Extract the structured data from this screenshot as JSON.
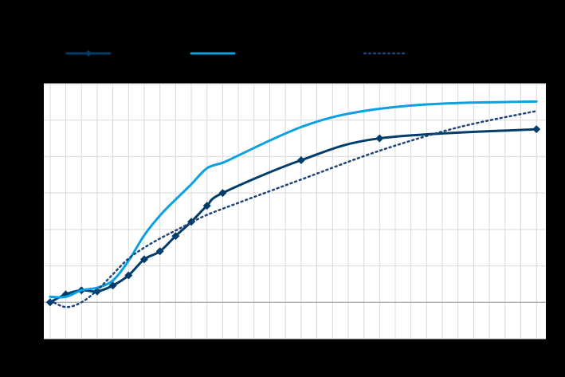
{
  "chart_data": {
    "type": "line",
    "xlim": [
      -0.4,
      31.6
    ],
    "ylim": [
      -1,
      6
    ],
    "xticks": [
      0,
      1,
      2,
      3,
      4,
      5,
      6,
      7,
      8,
      9,
      10,
      11,
      12,
      13,
      14,
      15,
      16,
      17,
      18,
      19,
      20,
      21,
      22,
      23,
      24,
      25,
      26,
      27,
      28,
      29,
      30,
      31
    ],
    "yticks": [
      -1,
      0,
      1,
      2,
      3,
      4,
      5,
      6
    ],
    "grid": true,
    "series": [
      {
        "color": "#003d6b",
        "marker": "diamond",
        "dash": "solid",
        "x": [
          0,
          1,
          2,
          3,
          4,
          5,
          6,
          7,
          8,
          9,
          10,
          11,
          16,
          21,
          31
        ],
        "values": [
          0,
          0.22,
          0.33,
          0.3,
          0.46,
          0.74,
          1.18,
          1.4,
          1.82,
          2.21,
          2.65,
          3.0,
          3.9,
          4.5,
          4.75
        ]
      },
      {
        "color": "#0aa0e2",
        "dash": "solid",
        "x": [
          0,
          1,
          2,
          3,
          4,
          5,
          6,
          7,
          8,
          9,
          10,
          11,
          12,
          14,
          16,
          18,
          20,
          22,
          24,
          26,
          28,
          31
        ],
        "values": [
          0.15,
          0.15,
          0.33,
          0.4,
          0.6,
          1.14,
          1.84,
          2.38,
          2.82,
          3.24,
          3.68,
          3.83,
          4.03,
          4.44,
          4.81,
          5.08,
          5.25,
          5.36,
          5.43,
          5.47,
          5.49,
          5.51
        ]
      },
      {
        "color": "#1f4475",
        "dash": "dotted",
        "x": [
          0,
          1,
          2,
          3,
          4,
          5,
          6,
          7,
          8,
          9,
          10,
          12,
          16,
          21,
          26,
          31
        ],
        "values": [
          0.05,
          -0.13,
          0,
          0.33,
          0.77,
          1.2,
          1.5,
          1.75,
          1.97,
          2.19,
          2.4,
          2.73,
          3.37,
          4.16,
          4.8,
          5.25
        ]
      }
    ]
  }
}
